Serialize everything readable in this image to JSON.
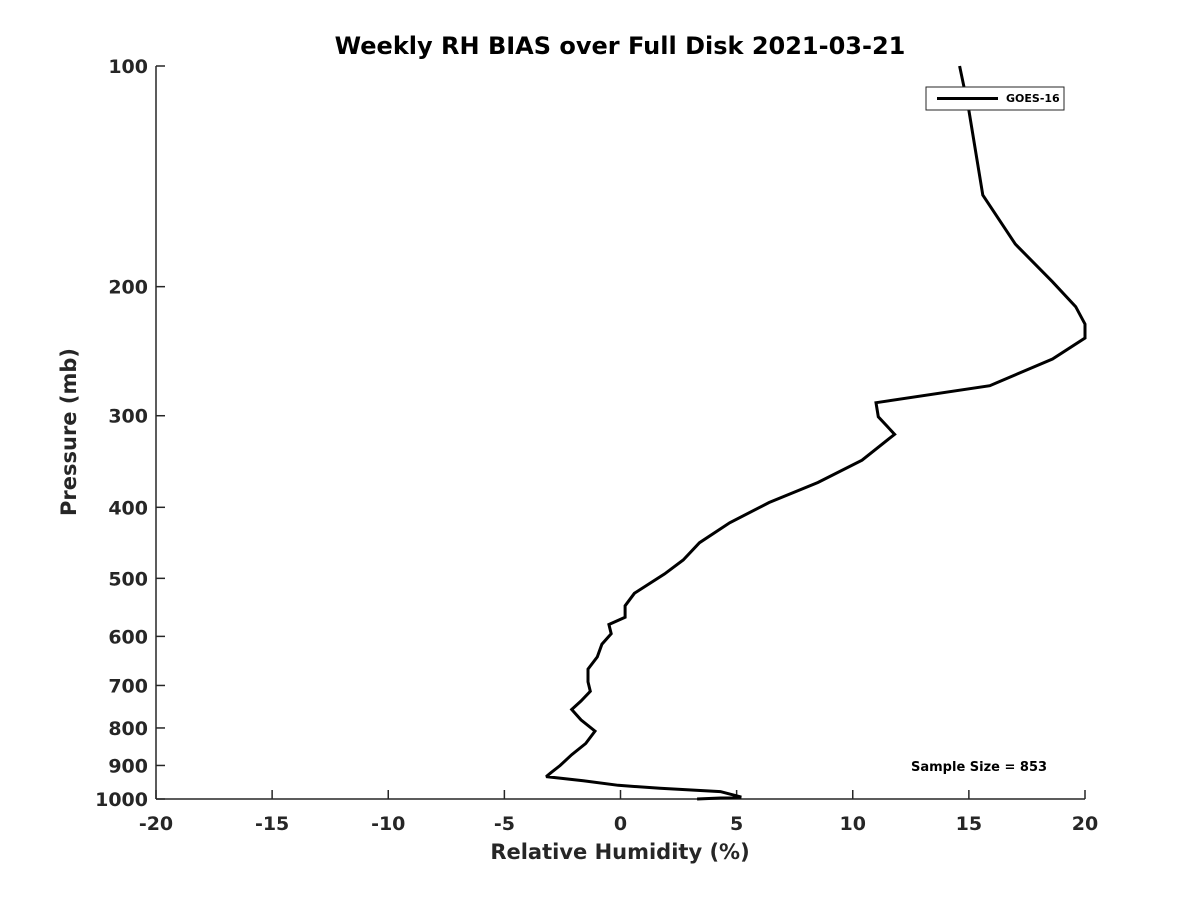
{
  "chart_data": {
    "type": "line",
    "title": "Weekly RH BIAS over Full Disk 2021-03-21",
    "xlabel": "Relative Humidity (%)",
    "ylabel": "Pressure (mb)",
    "xlim": [
      -20,
      20
    ],
    "ylim": [
      100,
      1000
    ],
    "y_scale": "log",
    "y_reversed": true,
    "x_ticks": [
      "-20",
      "-15",
      "-10",
      "-5",
      "0",
      "5",
      "10",
      "15",
      "20"
    ],
    "y_ticks": [
      "100",
      "200",
      "300",
      "400",
      "500",
      "600",
      "700",
      "800",
      "900",
      "1000"
    ],
    "grid": false,
    "legend_position": "top-right",
    "series": [
      {
        "name": "GOES-16",
        "color": "#000000",
        "points": [
          [
            14.6,
            100
          ],
          [
            15.0,
            115
          ],
          [
            15.6,
            150
          ],
          [
            17.0,
            175
          ],
          [
            18.6,
            197
          ],
          [
            19.6,
            213
          ],
          [
            20.0,
            225
          ],
          [
            20.0,
            235
          ],
          [
            18.6,
            251
          ],
          [
            15.9,
            273
          ],
          [
            11.0,
            288
          ],
          [
            11.1,
            301
          ],
          [
            11.8,
            318
          ],
          [
            10.4,
            345
          ],
          [
            8.5,
            370
          ],
          [
            6.4,
            394
          ],
          [
            4.7,
            420
          ],
          [
            3.4,
            447
          ],
          [
            2.7,
            472
          ],
          [
            1.9,
            493
          ],
          [
            0.6,
            524
          ],
          [
            0.2,
            545
          ],
          [
            0.2,
            565
          ],
          [
            -0.5,
            578
          ],
          [
            -0.4,
            595
          ],
          [
            -0.8,
            615
          ],
          [
            -1.0,
            640
          ],
          [
            -1.4,
            665
          ],
          [
            -1.4,
            692
          ],
          [
            -1.3,
            713
          ],
          [
            -1.7,
            735
          ],
          [
            -2.1,
            755
          ],
          [
            -1.7,
            780
          ],
          [
            -1.1,
            808
          ],
          [
            -1.5,
            840
          ],
          [
            -2.1,
            870
          ],
          [
            -2.6,
            900
          ],
          [
            -3.0,
            921
          ],
          [
            -3.2,
            932
          ],
          [
            -1.6,
            944
          ],
          [
            -0.1,
            958
          ],
          [
            1.7,
            967
          ],
          [
            4.3,
            977
          ],
          [
            5.2,
            994
          ],
          [
            3.3,
            1000
          ]
        ]
      }
    ],
    "annotations": [
      "Sample Size = 853"
    ]
  }
}
